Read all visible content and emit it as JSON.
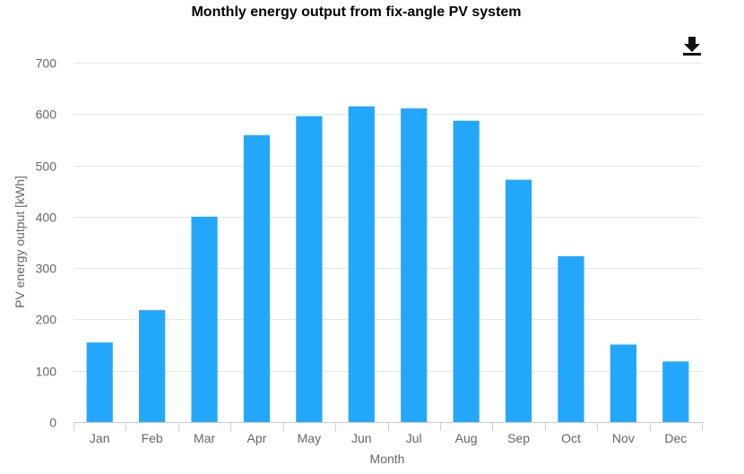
{
  "chart_data": {
    "type": "bar",
    "title": "Monthly energy output from fix-angle PV system",
    "xlabel": "Month",
    "ylabel": "PV energy output [kWh]",
    "categories": [
      "Jan",
      "Feb",
      "Mar",
      "Apr",
      "May",
      "Jun",
      "Jul",
      "Aug",
      "Sep",
      "Oct",
      "Nov",
      "Dec"
    ],
    "values": [
      155,
      218,
      400,
      559,
      596,
      615,
      611,
      587,
      472,
      323,
      151,
      118
    ],
    "ylim": [
      0,
      700
    ],
    "yticks": [
      0,
      100,
      200,
      300,
      400,
      500,
      600,
      700
    ],
    "grid": true,
    "legend": "none",
    "colors": {
      "bar": "#22a7fb",
      "grid": "#e6e6e6",
      "axis": "#cccccc",
      "text": "#666666"
    }
  },
  "toolbar": {
    "download_icon": "download-icon"
  }
}
